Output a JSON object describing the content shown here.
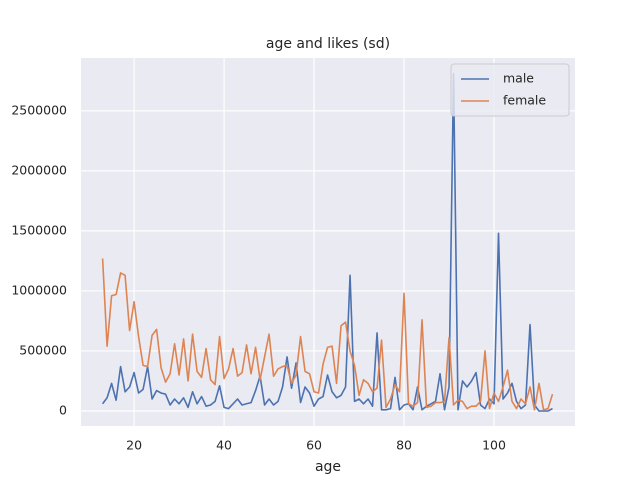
{
  "chart_data": {
    "type": "line",
    "title": "age and likes (sd)",
    "x_label": "age",
    "x": [
      13,
      14,
      15,
      16,
      17,
      18,
      19,
      20,
      21,
      22,
      23,
      24,
      25,
      26,
      27,
      28,
      29,
      30,
      31,
      32,
      33,
      34,
      35,
      36,
      37,
      38,
      39,
      40,
      41,
      42,
      43,
      44,
      45,
      46,
      47,
      48,
      49,
      50,
      51,
      52,
      53,
      54,
      55,
      56,
      57,
      58,
      59,
      60,
      61,
      62,
      63,
      64,
      65,
      66,
      67,
      68,
      69,
      70,
      71,
      72,
      73,
      74,
      75,
      76,
      77,
      78,
      79,
      80,
      81,
      82,
      83,
      84,
      85,
      86,
      87,
      88,
      89,
      90,
      91,
      92,
      93,
      94,
      95,
      96,
      97,
      98,
      99,
      100,
      101,
      102,
      103,
      104,
      105,
      106,
      107,
      108,
      109,
      110,
      111,
      112,
      113
    ],
    "series": [
      {
        "name": "male",
        "color": "#4c72b0",
        "values": [
          60000,
          110000,
          230000,
          90000,
          370000,
          160000,
          200000,
          320000,
          150000,
          180000,
          370000,
          100000,
          170000,
          150000,
          140000,
          50000,
          100000,
          60000,
          110000,
          30000,
          160000,
          60000,
          120000,
          40000,
          50000,
          80000,
          210000,
          30000,
          20000,
          60000,
          100000,
          50000,
          60000,
          70000,
          170000,
          290000,
          50000,
          100000,
          50000,
          80000,
          200000,
          450000,
          190000,
          400000,
          70000,
          200000,
          150000,
          40000,
          100000,
          120000,
          300000,
          160000,
          110000,
          130000,
          200000,
          1130000,
          80000,
          100000,
          60000,
          100000,
          40000,
          650000,
          10000,
          10000,
          20000,
          280000,
          10000,
          50000,
          60000,
          10000,
          200000,
          10000,
          40000,
          60000,
          80000,
          310000,
          10000,
          200000,
          2810000,
          10000,
          250000,
          200000,
          250000,
          320000,
          50000,
          20000,
          100000,
          60000,
          1480000,
          100000,
          150000,
          230000,
          80000,
          20000,
          50000,
          720000,
          50000,
          0,
          0,
          0,
          20000
        ]
      },
      {
        "name": "female",
        "color": "#dd8452",
        "values": [
          1270000,
          540000,
          960000,
          970000,
          1150000,
          1130000,
          670000,
          910000,
          620000,
          380000,
          370000,
          630000,
          680000,
          360000,
          240000,
          310000,
          560000,
          300000,
          600000,
          250000,
          640000,
          330000,
          280000,
          520000,
          260000,
          220000,
          620000,
          270000,
          350000,
          520000,
          290000,
          320000,
          550000,
          310000,
          530000,
          260000,
          450000,
          640000,
          290000,
          350000,
          370000,
          380000,
          230000,
          300000,
          620000,
          330000,
          310000,
          160000,
          150000,
          390000,
          530000,
          540000,
          230000,
          710000,
          740000,
          500000,
          380000,
          130000,
          260000,
          230000,
          160000,
          190000,
          590000,
          30000,
          100000,
          220000,
          160000,
          980000,
          60000,
          40000,
          70000,
          760000,
          30000,
          40000,
          70000,
          70000,
          80000,
          610000,
          50000,
          90000,
          80000,
          20000,
          40000,
          40000,
          80000,
          500000,
          20000,
          150000,
          80000,
          200000,
          340000,
          80000,
          20000,
          100000,
          60000,
          200000,
          10000,
          230000,
          10000,
          20000,
          140000
        ]
      }
    ],
    "xlim": [
      8.2,
      118
    ],
    "xticks": [
      20,
      40,
      60,
      80,
      100
    ],
    "ylim": [
      -125000,
      2940000
    ],
    "yticks": [
      0,
      500000,
      1000000,
      1500000,
      2000000,
      2500000
    ],
    "grid": true,
    "legend": "upper right"
  }
}
